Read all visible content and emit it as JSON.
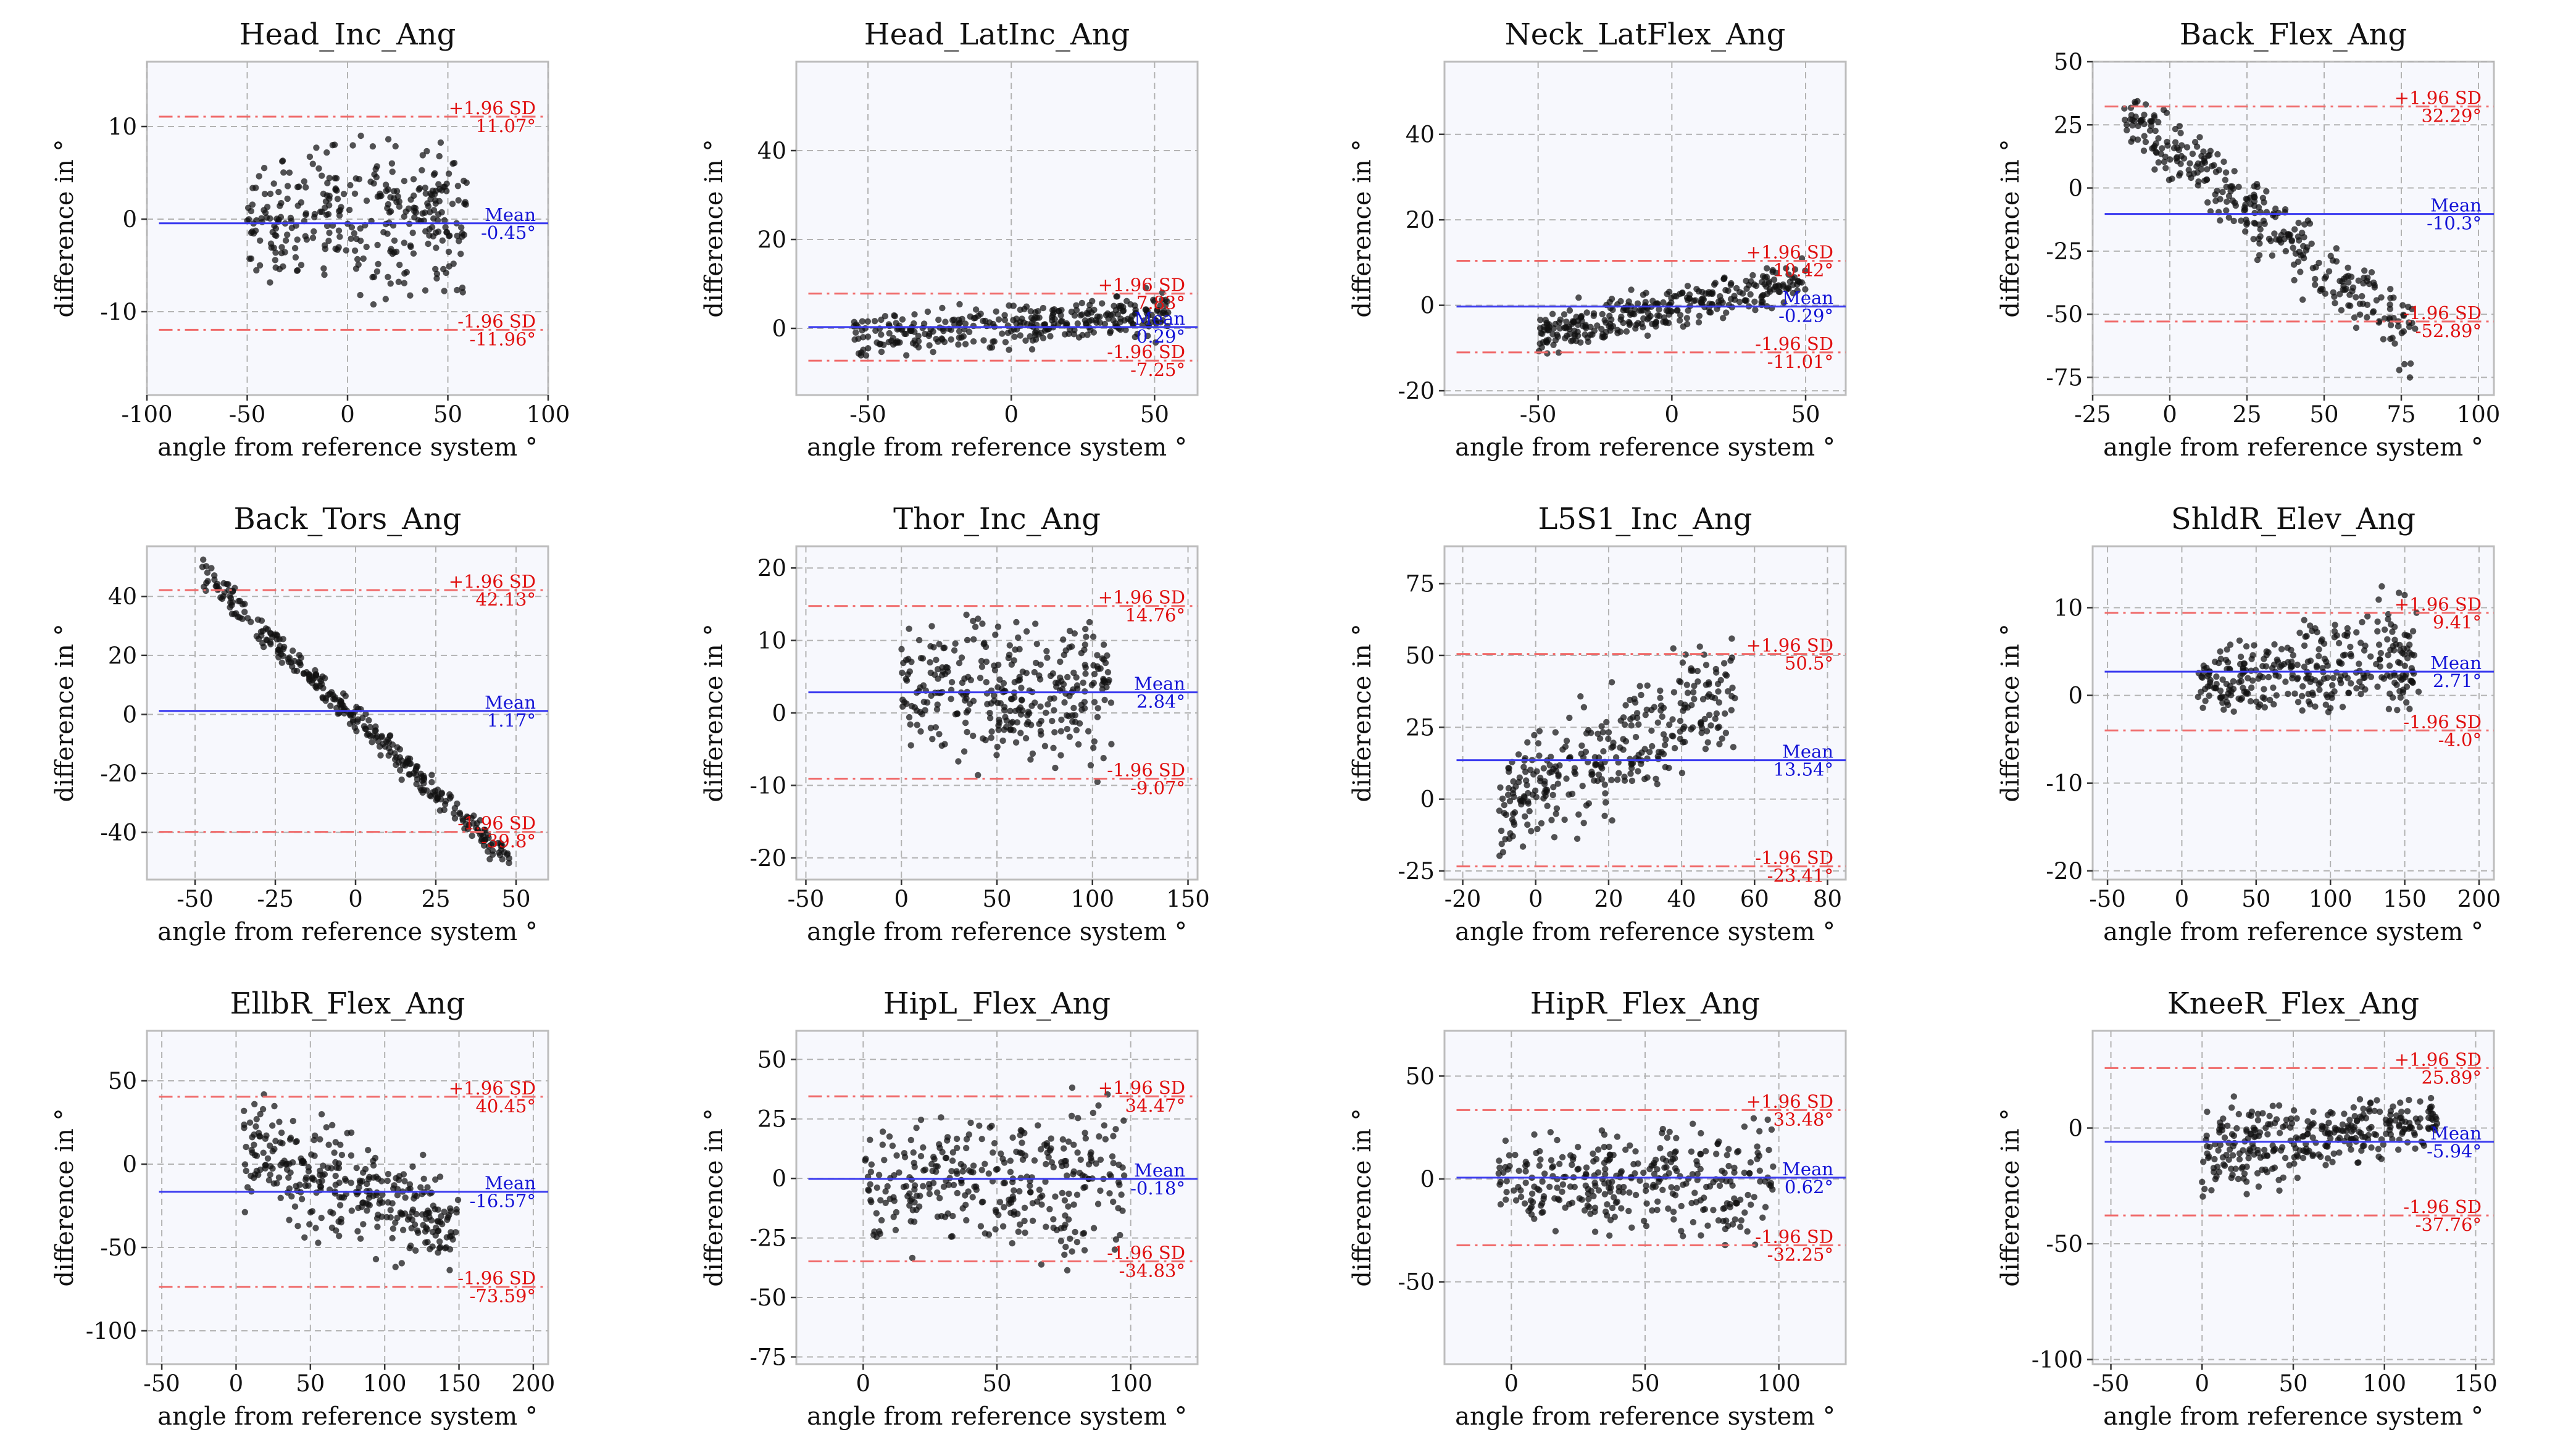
{
  "figure": {
    "xlabel": "angle from reference system °",
    "ylabel": "difference in °",
    "colors": {
      "points": "#111111",
      "mean_line": "#3b3bf0",
      "loa_line": "#f06a6a",
      "mean_text": "#1414d6",
      "loa_text": "#e01010"
    }
  },
  "chart_data": [
    {
      "type": "scatter",
      "title": "Head_Inc_Ang",
      "xlim": [
        -100,
        100
      ],
      "ylim": [
        -19,
        17
      ],
      "xticks": [
        -100,
        -50,
        0,
        50,
        100
      ],
      "yticks": [
        -10,
        0,
        10
      ],
      "mean": -0.45,
      "upper": 11.07,
      "lower": -11.96,
      "ann": {
        "upper_label": "+1.96 SD",
        "upper_value": "11.07°",
        "mean_label": "Mean",
        "mean_value": "-0.45°",
        "lower_label": "-1.96 SD",
        "lower_value": "-11.96°"
      },
      "scatter": {
        "x0": -50,
        "x1": 60,
        "c0": 0,
        "c1": 0,
        "s0": 4,
        "s1": 5,
        "n": 320
      }
    },
    {
      "type": "scatter",
      "title": "Head_LatInc_Ang",
      "xlim": [
        -75,
        65
      ],
      "ylim": [
        -15,
        60
      ],
      "xticks": [
        -50,
        0,
        50
      ],
      "yticks": [
        0,
        20,
        40
      ],
      "mean": 0.29,
      "upper": 7.83,
      "lower": -7.25,
      "ann": {
        "upper_label": "+1.96 SD",
        "upper_value": "7.83°",
        "mean_label": "Mean",
        "mean_value": "0.29°",
        "lower_label": "-1.96 SD",
        "lower_value": "-7.25°"
      },
      "scatter": {
        "x0": -55,
        "x1": 55,
        "c0": -2,
        "c1": 3,
        "s0": 3,
        "s1": 3,
        "n": 320
      }
    },
    {
      "type": "scatter",
      "title": "Neck_LatFlex_Ang",
      "xlim": [
        -85,
        65
      ],
      "ylim": [
        -21,
        57
      ],
      "xticks": [
        -50,
        0,
        50
      ],
      "yticks": [
        -20,
        0,
        20,
        40
      ],
      "mean": -0.29,
      "upper": 10.42,
      "lower": -11.01,
      "ann": {
        "upper_label": "+1.96 SD",
        "upper_value": "10.42°",
        "mean_label": "Mean",
        "mean_value": "-0.29°",
        "lower_label": "-1.96 SD",
        "lower_value": "-11.01°"
      },
      "scatter": {
        "x0": -50,
        "x1": 50,
        "c0": -7,
        "c1": 6,
        "s0": 3,
        "s1": 3,
        "n": 320
      }
    },
    {
      "type": "scatter",
      "title": "Back_Flex_Ang",
      "xlim": [
        -25,
        105
      ],
      "ylim": [
        -82,
        50
      ],
      "xticks": [
        -25,
        0,
        25,
        50,
        75,
        100
      ],
      "yticks": [
        -75,
        -50,
        -25,
        0,
        25,
        50
      ],
      "mean": -10.3,
      "upper": 32.29,
      "lower": -52.89,
      "ann": {
        "upper_label": "+1.96 SD",
        "upper_value": "32.29°",
        "mean_label": "Mean",
        "mean_value": "-10.3°",
        "lower_label": "-1.96 SD",
        "lower_value": "-52.89°"
      },
      "scatter": {
        "x0": -15,
        "x1": 80,
        "c0": 30,
        "c1": -60,
        "s0": 8,
        "s1": 10,
        "n": 320
      }
    },
    {
      "type": "scatter",
      "title": "Back_Tors_Ang",
      "xlim": [
        -65,
        60
      ],
      "ylim": [
        -56,
        57
      ],
      "xticks": [
        -50,
        -25,
        0,
        25,
        50
      ],
      "yticks": [
        -40,
        -20,
        0,
        20,
        40
      ],
      "mean": 1.17,
      "upper": 42.13,
      "lower": -39.8,
      "ann": {
        "upper_label": "+1.96 SD",
        "upper_value": "42.13°",
        "mean_label": "Mean",
        "mean_value": "1.17°",
        "lower_label": "-1.96 SD",
        "lower_value": "-39.8°"
      },
      "scatter": {
        "x0": -48,
        "x1": 48,
        "c0": 48,
        "c1": -50,
        "s0": 3,
        "s1": 3,
        "n": 320
      }
    },
    {
      "type": "scatter",
      "title": "Thor_Inc_Ang",
      "xlim": [
        -55,
        155
      ],
      "ylim": [
        -23,
        23
      ],
      "xticks": [
        -50,
        0,
        50,
        100,
        150
      ],
      "yticks": [
        -20,
        -10,
        0,
        10,
        20
      ],
      "mean": 2.84,
      "upper": 14.76,
      "lower": -9.07,
      "ann": {
        "upper_label": "+1.96 SD",
        "upper_value": "14.76°",
        "mean_label": "Mean",
        "mean_value": "2.84°",
        "lower_label": "-1.96 SD",
        "lower_value": "-9.07°"
      },
      "scatter": {
        "x0": 0,
        "x1": 110,
        "c0": 3,
        "c1": 3,
        "s0": 5,
        "s1": 6,
        "n": 320
      }
    },
    {
      "type": "scatter",
      "title": "L5S1_Inc_Ang",
      "xlim": [
        -25,
        85
      ],
      "ylim": [
        -28,
        88
      ],
      "xticks": [
        -20,
        0,
        20,
        40,
        60,
        80
      ],
      "yticks": [
        -25,
        0,
        25,
        50,
        75
      ],
      "mean": 13.54,
      "upper": 50.5,
      "lower": -23.41,
      "ann": {
        "upper_label": "+1.96 SD",
        "upper_value": "50.5°",
        "mean_label": "Mean",
        "mean_value": "13.54°",
        "lower_label": "-1.96 SD",
        "lower_value": "-23.41°"
      },
      "scatter": {
        "x0": -10,
        "x1": 55,
        "c0": -5,
        "c1": 40,
        "s0": 10,
        "s1": 14,
        "n": 320
      }
    },
    {
      "type": "scatter",
      "title": "ShldR_Elev_Ang",
      "xlim": [
        -60,
        210
      ],
      "ylim": [
        -21,
        17
      ],
      "xticks": [
        -50,
        0,
        50,
        100,
        150,
        200
      ],
      "yticks": [
        -20,
        -10,
        0,
        10
      ],
      "mean": 2.71,
      "upper": 9.41,
      "lower": -4.0,
      "ann": {
        "upper_label": "+1.96 SD",
        "upper_value": "9.41°",
        "mean_label": "Mean",
        "mean_value": "2.71°",
        "lower_label": "-1.96 SD",
        "lower_value": "-4.0°"
      },
      "scatter": {
        "x0": 10,
        "x1": 160,
        "c0": 1,
        "c1": 5,
        "s0": 2,
        "s1": 4,
        "n": 320
      }
    },
    {
      "type": "scatter",
      "title": "EllbR_Flex_Ang",
      "xlim": [
        -60,
        210
      ],
      "ylim": [
        -120,
        80
      ],
      "xticks": [
        -50,
        0,
        50,
        100,
        150,
        200
      ],
      "yticks": [
        -100,
        -50,
        0,
        50
      ],
      "mean": -16.57,
      "upper": 40.45,
      "lower": -73.59,
      "ann": {
        "upper_label": "+1.96 SD",
        "upper_value": "40.45°",
        "mean_label": "Mean",
        "mean_value": "-16.57°",
        "lower_label": "-1.96 SD",
        "lower_value": "-73.59°"
      },
      "scatter": {
        "x0": 5,
        "x1": 150,
        "c0": 10,
        "c1": -40,
        "s0": 20,
        "s1": 20,
        "n": 320
      }
    },
    {
      "type": "scatter",
      "title": "HipL_Flex_Ang",
      "xlim": [
        -25,
        125
      ],
      "ylim": [
        -78,
        62
      ],
      "xticks": [
        0,
        50,
        100
      ],
      "yticks": [
        -75,
        -50,
        -25,
        0,
        25,
        50
      ],
      "mean": -0.18,
      "upper": 34.47,
      "lower": -34.83,
      "ann": {
        "upper_label": "+1.96 SD",
        "upper_value": "34.47°",
        "mean_label": "Mean",
        "mean_value": "-0.18°",
        "lower_label": "-1.96 SD",
        "lower_value": "-34.83°"
      },
      "scatter": {
        "x0": 0,
        "x1": 98,
        "c0": 0,
        "c1": 0,
        "s0": 14,
        "s1": 20,
        "n": 320
      }
    },
    {
      "type": "scatter",
      "title": "HipR_Flex_Ang",
      "xlim": [
        -25,
        125
      ],
      "ylim": [
        -90,
        72
      ],
      "xticks": [
        0,
        50,
        100
      ],
      "yticks": [
        -50,
        0,
        50
      ],
      "mean": 0.62,
      "upper": 33.48,
      "lower": -32.25,
      "ann": {
        "upper_label": "+1.96 SD",
        "upper_value": "33.48°",
        "mean_label": "Mean",
        "mean_value": "0.62°",
        "lower_label": "-1.96 SD",
        "lower_value": "-32.25°"
      },
      "scatter": {
        "x0": -5,
        "x1": 98,
        "c0": 0,
        "c1": 0,
        "s0": 12,
        "s1": 18,
        "n": 320
      }
    },
    {
      "type": "scatter",
      "title": "KneeR_Flex_Ang",
      "xlim": [
        -60,
        160
      ],
      "ylim": [
        -102,
        42
      ],
      "xticks": [
        -50,
        0,
        50,
        100,
        150
      ],
      "yticks": [
        -100,
        -50,
        0
      ],
      "mean": -5.94,
      "upper": 25.89,
      "lower": -37.76,
      "ann": {
        "upper_label": "+1.96 SD",
        "upper_value": "25.89°",
        "mean_label": "Mean",
        "mean_value": "-5.94°",
        "lower_label": "-1.96 SD",
        "lower_value": "-37.76°"
      },
      "scatter": {
        "x0": 0,
        "x1": 130,
        "c0": -10,
        "c1": 3,
        "s0": 12,
        "s1": 6,
        "n": 320
      }
    }
  ]
}
